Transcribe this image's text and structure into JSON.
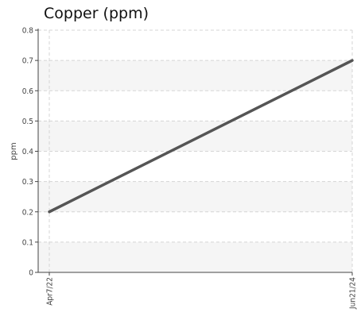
{
  "chart_data": {
    "type": "line",
    "title": "Copper (ppm)",
    "xlabel": "",
    "ylabel": "ppm",
    "x": [
      "Apr7/22",
      "Jun21/24"
    ],
    "series": [
      {
        "values": [
          0.2,
          0.7
        ]
      }
    ],
    "ylim": [
      0,
      0.8
    ],
    "yticks": [
      "0",
      "0.1",
      "0.2",
      "0.3",
      "0.4",
      "0.5",
      "0.6",
      "0.7",
      "0.8"
    ],
    "grid": true,
    "legend": "none",
    "colors": {
      "line": "#555555",
      "band": "#f5f5f5",
      "grid": "#d5d5d5",
      "axis": "#444444"
    }
  }
}
